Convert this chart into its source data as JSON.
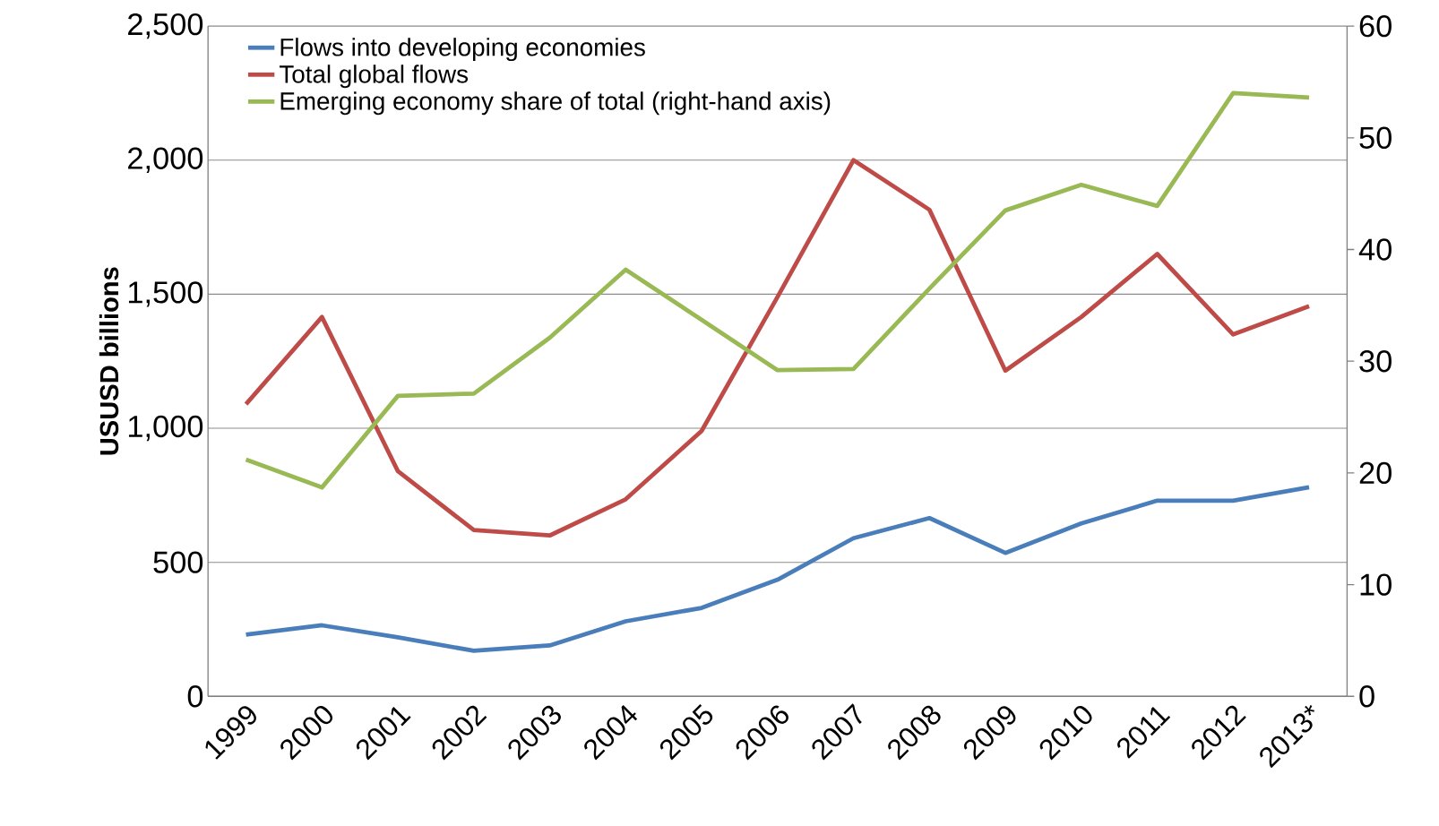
{
  "chart_data": {
    "type": "line",
    "categories": [
      "1999",
      "2000",
      "2001",
      "2002",
      "2003",
      "2004",
      "2005",
      "2006",
      "2007",
      "2008",
      "2009",
      "2010",
      "2011",
      "2012",
      "2013*"
    ],
    "ylabel": "USUSD billions",
    "ylim": [
      0,
      2500
    ],
    "yticks": [
      0,
      500,
      {
        "value": 1000,
        "label": "1,000"
      },
      {
        "value": 1500,
        "label": "1,500"
      },
      {
        "value": 2000,
        "label": "2,000"
      },
      {
        "value": 2500,
        "label": "2,500"
      }
    ],
    "y2lim": [
      0,
      60
    ],
    "y2ticks": [
      0,
      10,
      20,
      30,
      40,
      50,
      60
    ],
    "grid": "y",
    "legend": "top left",
    "series": [
      {
        "name": "Flows into developing economies",
        "color": "#4a7ebb",
        "values": [
          230,
          265,
          220,
          170,
          190,
          280,
          330,
          435,
          590,
          665,
          535,
          645,
          730,
          730,
          780
        ]
      },
      {
        "name": "Total global flows",
        "color": "#be4b48",
        "values": [
          1090,
          1415,
          840,
          620,
          600,
          735,
          990,
          1490,
          2000,
          1815,
          1215,
          1415,
          1650,
          1350,
          1455
        ]
      },
      {
        "name": "Emerging economy share of total (right-hand axis)",
        "color": "#98b954",
        "axis": "y2",
        "values": [
          21.2,
          18.7,
          26.9,
          27.1,
          32.1,
          38.2,
          33.7,
          29.2,
          29.3,
          36.5,
          43.5,
          45.8,
          43.9,
          54.0,
          53.6
        ]
      }
    ]
  }
}
